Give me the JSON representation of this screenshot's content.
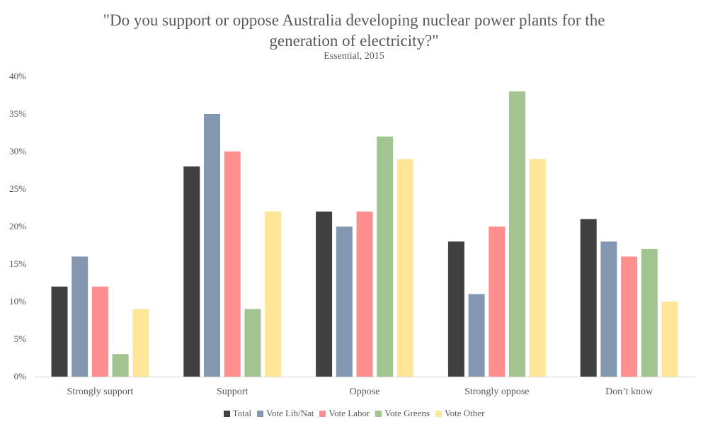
{
  "chart_data": {
    "type": "bar",
    "title_line1": "\"Do you support or oppose Australia developing nuclear power plants for the",
    "title_line2": "generation of electricity?\"",
    "subtitle": "Essential, 2015",
    "xlabel": "",
    "ylabel": "",
    "ylim": [
      0,
      40
    ],
    "yticks": [
      "0%",
      "5%",
      "10%",
      "15%",
      "20%",
      "25%",
      "30%",
      "35%",
      "40%"
    ],
    "categories": [
      "Strongly support",
      "Support",
      "Oppose",
      "Strongly oppose",
      "Don’t know"
    ],
    "series": [
      {
        "name": "Total",
        "color": "#404040",
        "values": [
          12,
          28,
          22,
          18,
          21
        ]
      },
      {
        "name": "Vote Lib/Nat",
        "color": "#8497B0",
        "values": [
          16,
          35,
          20,
          11,
          18
        ]
      },
      {
        "name": "Vote Labor",
        "color": "#FF8F8F",
        "values": [
          12,
          30,
          22,
          20,
          16
        ]
      },
      {
        "name": "Vote Greens",
        "color": "#A1C490",
        "values": [
          3,
          9,
          32,
          38,
          17
        ]
      },
      {
        "name": "Vote Other",
        "color": "#FFE699",
        "values": [
          9,
          22,
          29,
          29,
          10
        ]
      }
    ],
    "legend_position": "bottom",
    "grid": false
  }
}
